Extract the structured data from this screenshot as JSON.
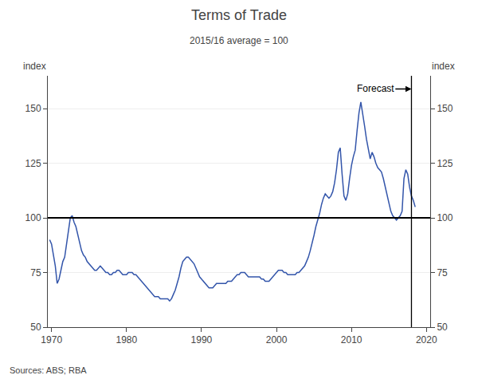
{
  "chart_data": {
    "type": "line",
    "title": "Terms of Trade",
    "subtitle": "2015/16 average = 100",
    "ylabel": "index",
    "y2label": "index",
    "source": "Sources: ABS; RBA",
    "color": "#3355aa",
    "grid": true,
    "xlim": [
      1969.5,
      2020.5
    ],
    "xticks": [
      1970,
      1980,
      1990,
      2000,
      2010,
      2020
    ],
    "ylim": [
      50,
      165
    ],
    "yticks": [
      50,
      75,
      100,
      125,
      150
    ],
    "y2lim": [
      50,
      165
    ],
    "y2ticks": [
      50,
      75,
      100,
      125,
      150
    ],
    "reference_lines": {
      "y": 100,
      "x": 2018.0
    },
    "annotations": [
      {
        "text": "Forecast",
        "x": 2013.2,
        "y": 159,
        "arrow_x": 2018.0,
        "arrow_y": 159
      }
    ],
    "x": [
      1969.75,
      1970.0,
      1970.25,
      1970.5,
      1970.75,
      1971.0,
      1971.25,
      1971.5,
      1971.75,
      1972.0,
      1972.25,
      1972.5,
      1972.75,
      1973.0,
      1973.25,
      1973.5,
      1973.75,
      1974.0,
      1974.25,
      1974.5,
      1974.75,
      1975.0,
      1975.25,
      1975.5,
      1975.75,
      1976.0,
      1976.25,
      1976.5,
      1976.75,
      1977.0,
      1977.25,
      1977.5,
      1977.75,
      1978.0,
      1978.25,
      1978.5,
      1978.75,
      1979.0,
      1979.25,
      1979.5,
      1979.75,
      1980.0,
      1980.25,
      1980.5,
      1980.75,
      1981.0,
      1981.25,
      1981.5,
      1981.75,
      1982.0,
      1982.25,
      1982.5,
      1982.75,
      1983.0,
      1983.25,
      1983.5,
      1983.75,
      1984.0,
      1984.25,
      1984.5,
      1984.75,
      1985.0,
      1985.25,
      1985.5,
      1985.75,
      1986.0,
      1986.25,
      1986.5,
      1986.75,
      1987.0,
      1987.25,
      1987.5,
      1987.75,
      1988.0,
      1988.25,
      1988.5,
      1988.75,
      1989.0,
      1989.25,
      1989.5,
      1989.75,
      1990.0,
      1990.25,
      1990.5,
      1990.75,
      1991.0,
      1991.25,
      1991.5,
      1991.75,
      1992.0,
      1992.25,
      1992.5,
      1992.75,
      1993.0,
      1993.25,
      1993.5,
      1993.75,
      1994.0,
      1994.25,
      1994.5,
      1994.75,
      1995.0,
      1995.25,
      1995.5,
      1995.75,
      1996.0,
      1996.25,
      1996.5,
      1996.75,
      1997.0,
      1997.25,
      1997.5,
      1997.75,
      1998.0,
      1998.25,
      1998.5,
      1998.75,
      1999.0,
      1999.25,
      1999.5,
      1999.75,
      2000.0,
      2000.25,
      2000.5,
      2000.75,
      2001.0,
      2001.25,
      2001.5,
      2001.75,
      2002.0,
      2002.25,
      2002.5,
      2002.75,
      2003.0,
      2003.25,
      2003.5,
      2003.75,
      2004.0,
      2004.25,
      2004.5,
      2004.75,
      2005.0,
      2005.25,
      2005.5,
      2005.75,
      2006.0,
      2006.25,
      2006.5,
      2006.75,
      2007.0,
      2007.25,
      2007.5,
      2007.75,
      2008.0,
      2008.25,
      2008.5,
      2008.75,
      2009.0,
      2009.25,
      2009.5,
      2009.75,
      2010.0,
      2010.25,
      2010.5,
      2010.75,
      2011.0,
      2011.25,
      2011.5,
      2011.75,
      2012.0,
      2012.25,
      2012.5,
      2012.75,
      2013.0,
      2013.25,
      2013.5,
      2013.75,
      2014.0,
      2014.25,
      2014.5,
      2014.75,
      2015.0,
      2015.25,
      2015.5,
      2015.75,
      2016.0,
      2016.25,
      2016.5,
      2016.75,
      2017.0,
      2017.25,
      2017.5,
      2017.75,
      2018.0,
      2018.25,
      2018.5
    ],
    "values": [
      90,
      88,
      83,
      78,
      70,
      72,
      76,
      80,
      82,
      88,
      95,
      100,
      101,
      98,
      96,
      92,
      88,
      85,
      83,
      82,
      80,
      79,
      78,
      77,
      76,
      76,
      77,
      78,
      77,
      76,
      75,
      75,
      74,
      74,
      75,
      75,
      76,
      76,
      75,
      74,
      74,
      74,
      75,
      75,
      75,
      74,
      74,
      73,
      72,
      71,
      70,
      69,
      68,
      67,
      66,
      65,
      64,
      64,
      64,
      63,
      63,
      63,
      63,
      63,
      62,
      63,
      65,
      67,
      70,
      73,
      77,
      80,
      81,
      82,
      82,
      81,
      80,
      79,
      77,
      75,
      73,
      72,
      71,
      70,
      69,
      68,
      68,
      68,
      69,
      70,
      70,
      70,
      70,
      70,
      70,
      71,
      71,
      71,
      72,
      73,
      74,
      74,
      75,
      75,
      75,
      74,
      73,
      73,
      73,
      73,
      73,
      73,
      73,
      72,
      72,
      71,
      71,
      71,
      72,
      73,
      74,
      75,
      76,
      76,
      76,
      75,
      75,
      74,
      74,
      74,
      74,
      74,
      75,
      75,
      76,
      77,
      78,
      80,
      82,
      85,
      88,
      92,
      96,
      99,
      102,
      106,
      109,
      111,
      110,
      109,
      110,
      112,
      116,
      122,
      130,
      132,
      120,
      110,
      108,
      111,
      118,
      124,
      128,
      131,
      140,
      148,
      153,
      148,
      142,
      136,
      132,
      127,
      130,
      128,
      125,
      123,
      122,
      121,
      118,
      114,
      110,
      106,
      103,
      101,
      100,
      99,
      100,
      101,
      103,
      118,
      122,
      120,
      114,
      110,
      108,
      105
    ]
  }
}
